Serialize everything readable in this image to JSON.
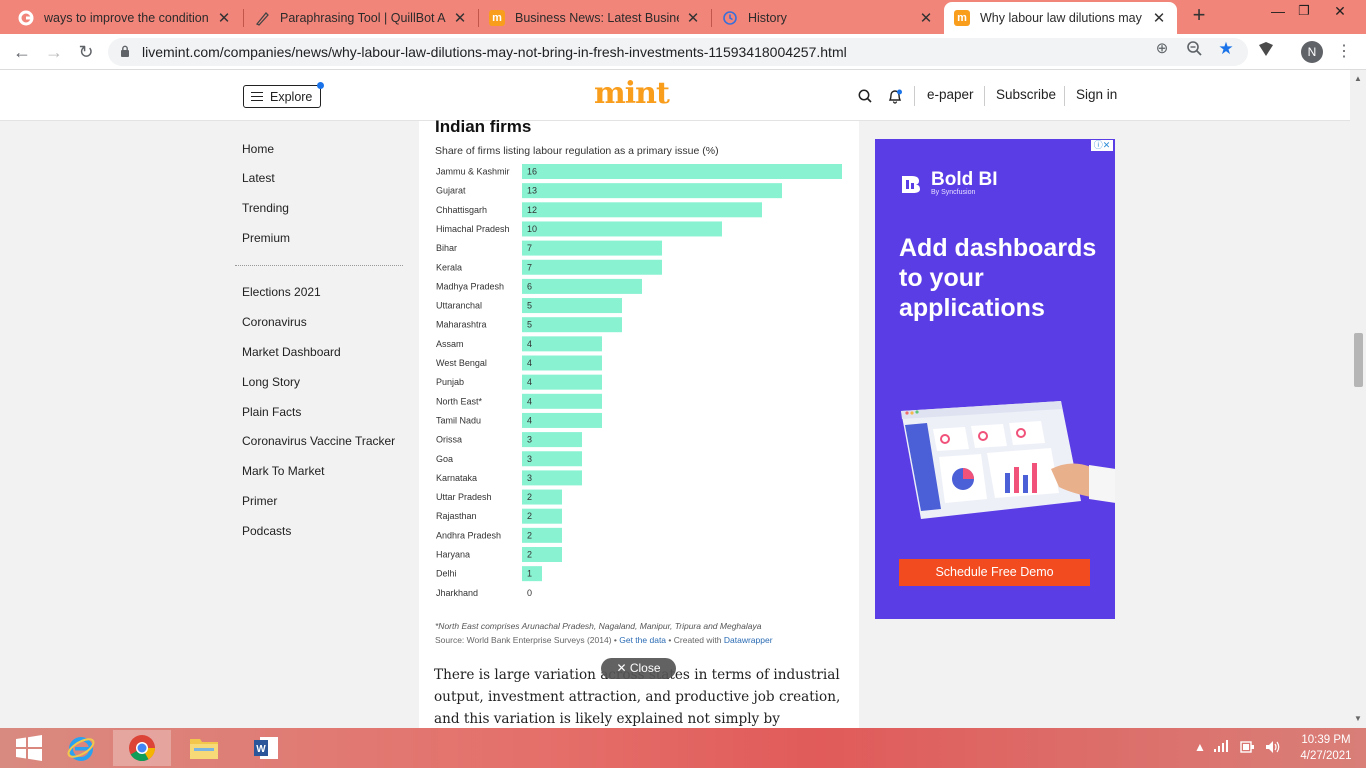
{
  "browser": {
    "tabs": [
      {
        "title": "ways to improve the condition o",
        "icon": "google-icon",
        "active": false
      },
      {
        "title": "Paraphrasing Tool | QuillBot AI",
        "icon": "quillbot-icon",
        "active": false
      },
      {
        "title": "Business News: Latest Business N",
        "icon": "mint-icon",
        "active": false
      },
      {
        "title": "History",
        "icon": "history-icon",
        "active": false
      },
      {
        "title": "Why labour law dilutions may no",
        "icon": "mint-icon",
        "active": true
      }
    ],
    "url": "livemint.com/companies/news/why-labour-law-dilutions-may-not-bring-in-fresh-investments-11593418004257.html",
    "profile_initial": "N",
    "tab_color": "#f2857a"
  },
  "site": {
    "explore_label": "Explore",
    "logo": "mint",
    "links": {
      "epaper": "e-paper",
      "subscribe": "Subscribe",
      "signin": "Sign in"
    },
    "logo_color": "#f99d1c"
  },
  "left_nav": {
    "primary": [
      "Home",
      "Latest",
      "Trending",
      "Premium"
    ],
    "secondary": [
      "Elections 2021",
      "Coronavirus",
      "Market Dashboard",
      "Long Story",
      "Plain Facts",
      "Coronavirus Vaccine Tracker",
      "Mark To Market",
      "Primer",
      "Podcasts"
    ]
  },
  "chart_data": {
    "type": "bar",
    "orientation": "horizontal",
    "title": "Indian firms",
    "subtitle": "Share of firms listing labour regulation as a primary issue (%)",
    "categories": [
      "Jammu & Kashmir",
      "Gujarat",
      "Chhattisgarh",
      "Himachal Pradesh",
      "Bihar",
      "Kerala",
      "Madhya Pradesh",
      "Uttaranchal",
      "Maharashtra",
      "Assam",
      "West Bengal",
      "Punjab",
      "North East*",
      "Tamil Nadu",
      "Orissa",
      "Goa",
      "Karnataka",
      "Uttar Pradesh",
      "Rajasthan",
      "Andhra Pradesh",
      "Haryana",
      "Delhi",
      "Jharkhand"
    ],
    "values": [
      16,
      13,
      12,
      10,
      7,
      7,
      6,
      5,
      5,
      4,
      4,
      4,
      4,
      4,
      3,
      3,
      3,
      2,
      2,
      2,
      2,
      1,
      0
    ],
    "xlim": [
      0,
      16
    ],
    "bar_color": "#88f2d1",
    "note": "*North East comprises Arunachal Pradesh, Nagaland, Manipur, Tripura and Meghalaya",
    "source": "Source: World Bank Enterprise Surveys (2014) •",
    "source_link": "Get the data",
    "created_with": "• Created with",
    "created_with_link": "Datawrapper"
  },
  "article": {
    "text": "There is large variation across states in terms of industrial output, investment attraction, and productive job creation, and this variation is likely explained not simply by differences in",
    "close_label": "Close"
  },
  "ad": {
    "brand": "Bold BI",
    "brand_sub": "By Syncfusion",
    "headline": "Add dashboards to your applications",
    "cta": "Schedule Free Demo",
    "bg_color": "#5b3de6",
    "cta_color": "#f14b1f"
  },
  "taskbar": {
    "time": "10:39 PM",
    "date": "4/27/2021"
  }
}
